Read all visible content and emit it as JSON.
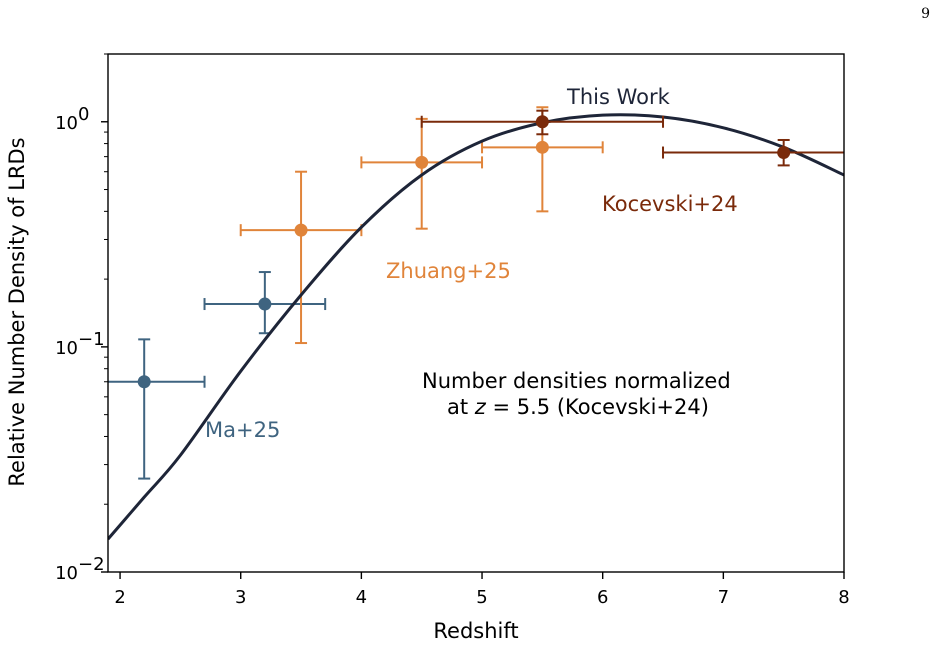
{
  "page_number": "9",
  "colors": {
    "ma25": "#3f6480",
    "zhuang25": "#e0843a",
    "kocevski24": "#7a2a0a",
    "this_work": "#1e2538"
  },
  "chart_data": {
    "type": "scatter",
    "xlabel": "Redshift",
    "ylabel": "Relative Number Density of LRDs",
    "xlim": [
      1.9,
      8.0
    ],
    "ylim": [
      0.01,
      2.0
    ],
    "yscale": "log",
    "xticks": [
      "2",
      "3",
      "4",
      "5",
      "6",
      "7",
      "8"
    ],
    "yticks": [
      {
        "base": "10",
        "exp": "0"
      },
      {
        "base": "10",
        "exp": "−1"
      },
      {
        "base": "10",
        "exp": "−2"
      }
    ],
    "grid": false,
    "series": [
      {
        "name": "Ma+25",
        "color": "#3f6480",
        "points": [
          {
            "x": 2.2,
            "y": 0.07,
            "xerr": [
              0.5,
              0.5
            ],
            "yerr_low": 0.026,
            "yerr_high": 0.108
          },
          {
            "x": 3.2,
            "y": 0.155,
            "xerr": [
              0.5,
              0.5
            ],
            "yerr_low": 0.115,
            "yerr_high": 0.215
          }
        ]
      },
      {
        "name": "Zhuang+25",
        "color": "#e0843a",
        "points": [
          {
            "x": 3.5,
            "y": 0.33,
            "xerr": [
              0.5,
              0.5
            ],
            "yerr_low": 0.104,
            "yerr_high": 0.6
          },
          {
            "x": 4.5,
            "y": 0.66,
            "xerr": [
              0.5,
              0.5
            ],
            "yerr_low": 0.335,
            "yerr_high": 1.03
          },
          {
            "x": 5.5,
            "y": 0.77,
            "xerr": [
              0.5,
              0.5
            ],
            "yerr_low": 0.4,
            "yerr_high": 1.16
          }
        ]
      },
      {
        "name": "Kocevski+24",
        "color": "#7a2a0a",
        "points": [
          {
            "x": 5.5,
            "y": 1.0,
            "xerr": [
              1.0,
              1.0
            ],
            "yerr_low": 0.88,
            "yerr_high": 1.12
          },
          {
            "x": 7.5,
            "y": 0.73,
            "xerr": [
              1.0,
              1.0
            ],
            "yerr_low": 0.64,
            "yerr_high": 0.83
          }
        ]
      }
    ],
    "fit_curve": {
      "name": "This Work",
      "color": "#1e2538",
      "x": [
        1.9,
        2.2,
        2.5,
        3.0,
        3.5,
        4.0,
        4.5,
        5.0,
        5.5,
        6.0,
        6.5,
        7.0,
        7.5,
        8.0
      ],
      "y": [
        0.014,
        0.0215,
        0.033,
        0.078,
        0.17,
        0.34,
        0.58,
        0.82,
        0.99,
        1.07,
        1.05,
        0.94,
        0.77,
        0.58
      ]
    },
    "annotations": {
      "this_work": "This Work",
      "kocevski": "Kocevski+24",
      "zhuang": "Zhuang+25",
      "ma": "Ma+25",
      "note_line1": "Number densities normalized",
      "note_line2_pre": "at ",
      "note_line2_var": "z",
      "note_line2_post": " = 5.5 (Kocevski+24)"
    }
  }
}
